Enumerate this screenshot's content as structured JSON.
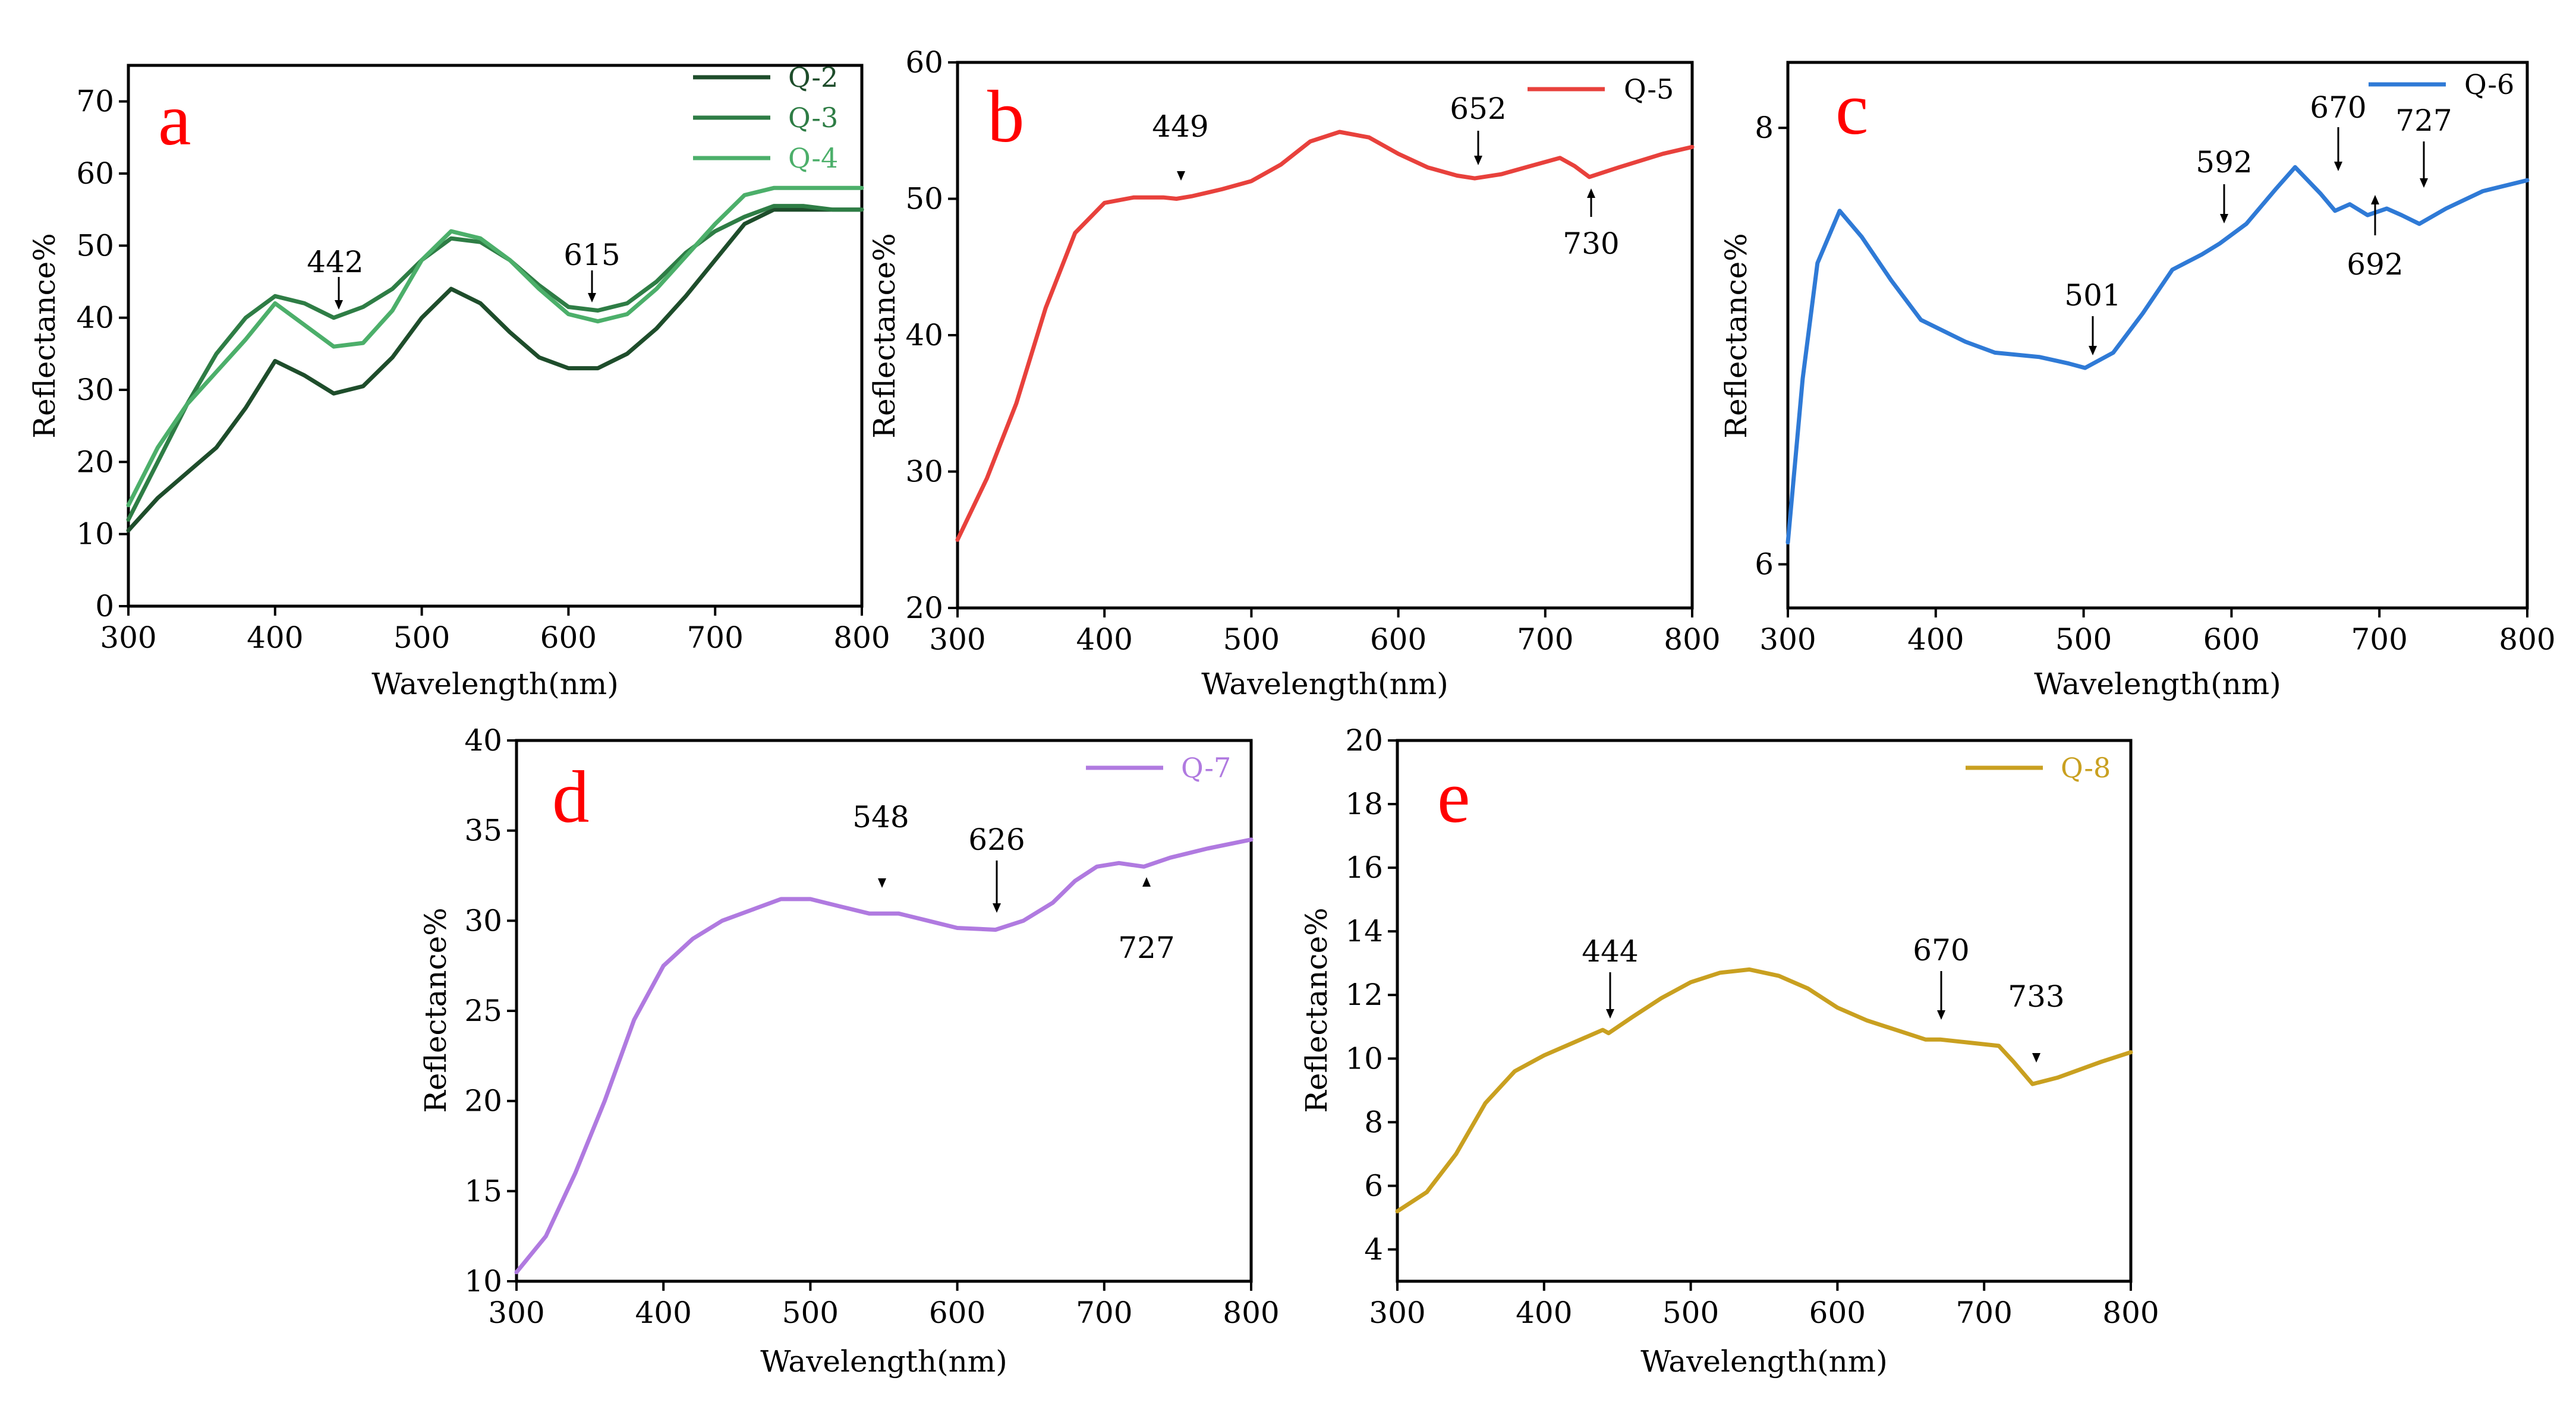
{
  "chart_data": [
    {
      "type": "line",
      "panel_label": "a",
      "xlabel": "Wavelength(nm)",
      "ylabel": "Reflectance%",
      "xlim": [
        300,
        800
      ],
      "ylim": [
        0,
        75
      ],
      "xticks": [
        300,
        400,
        500,
        600,
        700,
        800
      ],
      "yticks": [
        0,
        10,
        20,
        30,
        40,
        50,
        60,
        70
      ],
      "legend_position": "top-right",
      "series": [
        {
          "name": "Q-2",
          "color": "#1e4d2b",
          "points": [
            [
              300,
              10.5
            ],
            [
              320,
              15
            ],
            [
              340,
              18.5
            ],
            [
              360,
              22
            ],
            [
              380,
              27.5
            ],
            [
              400,
              34
            ],
            [
              420,
              32
            ],
            [
              440,
              29.5
            ],
            [
              460,
              30.5
            ],
            [
              480,
              34.5
            ],
            [
              500,
              40
            ],
            [
              520,
              44
            ],
            [
              540,
              42
            ],
            [
              560,
              38
            ],
            [
              580,
              34.5
            ],
            [
              600,
              33
            ],
            [
              620,
              33
            ],
            [
              640,
              35
            ],
            [
              660,
              38.5
            ],
            [
              680,
              43
            ],
            [
              700,
              48
            ],
            [
              720,
              53
            ],
            [
              740,
              55
            ],
            [
              760,
              55
            ],
            [
              780,
              55
            ],
            [
              800,
              55
            ]
          ]
        },
        {
          "name": "Q-3",
          "color": "#2e7d45",
          "points": [
            [
              300,
              12
            ],
            [
              320,
              20
            ],
            [
              340,
              28
            ],
            [
              360,
              35
            ],
            [
              380,
              40
            ],
            [
              400,
              43
            ],
            [
              420,
              42
            ],
            [
              440,
              40
            ],
            [
              460,
              41.5
            ],
            [
              480,
              44
            ],
            [
              500,
              48
            ],
            [
              520,
              51
            ],
            [
              540,
              50.5
            ],
            [
              560,
              48
            ],
            [
              580,
              44.5
            ],
            [
              600,
              41.5
            ],
            [
              620,
              41
            ],
            [
              640,
              42
            ],
            [
              660,
              45
            ],
            [
              680,
              49
            ],
            [
              700,
              52
            ],
            [
              720,
              54
            ],
            [
              740,
              55.5
            ],
            [
              760,
              55.5
            ],
            [
              780,
              55
            ],
            [
              800,
              55
            ]
          ]
        },
        {
          "name": "Q-4",
          "color": "#4caf6a",
          "points": [
            [
              300,
              14
            ],
            [
              320,
              22
            ],
            [
              340,
              28
            ],
            [
              360,
              32.5
            ],
            [
              380,
              37
            ],
            [
              400,
              42
            ],
            [
              420,
              39
            ],
            [
              440,
              36
            ],
            [
              460,
              36.5
            ],
            [
              480,
              41
            ],
            [
              500,
              48
            ],
            [
              520,
              52
            ],
            [
              540,
              51
            ],
            [
              560,
              48
            ],
            [
              580,
              44
            ],
            [
              600,
              40.5
            ],
            [
              620,
              39.5
            ],
            [
              640,
              40.5
            ],
            [
              660,
              44
            ],
            [
              680,
              48.5
            ],
            [
              700,
              53
            ],
            [
              720,
              57
            ],
            [
              740,
              58
            ],
            [
              760,
              58
            ],
            [
              780,
              58
            ],
            [
              800,
              58
            ]
          ]
        }
      ],
      "annotations": [
        "442",
        "615"
      ]
    },
    {
      "type": "line",
      "panel_label": "b",
      "xlabel": "Wavelength(nm)",
      "ylabel": "Reflectance%",
      "xlim": [
        300,
        800
      ],
      "ylim": [
        20,
        60
      ],
      "xticks": [
        300,
        400,
        500,
        600,
        700,
        800
      ],
      "yticks": [
        20,
        30,
        40,
        50,
        60
      ],
      "legend_position": "top-right",
      "series": [
        {
          "name": "Q-5",
          "color": "#e8413c",
          "points": [
            [
              300,
              25
            ],
            [
              320,
              29.5
            ],
            [
              340,
              35
            ],
            [
              360,
              42
            ],
            [
              380,
              47.5
            ],
            [
              400,
              49.7
            ],
            [
              420,
              50.1
            ],
            [
              440,
              50.1
            ],
            [
              449,
              50.0
            ],
            [
              460,
              50.2
            ],
            [
              480,
              50.7
            ],
            [
              500,
              51.3
            ],
            [
              520,
              52.5
            ],
            [
              540,
              54.2
            ],
            [
              560,
              54.9
            ],
            [
              580,
              54.5
            ],
            [
              600,
              53.3
            ],
            [
              620,
              52.3
            ],
            [
              640,
              51.7
            ],
            [
              652,
              51.5
            ],
            [
              670,
              51.8
            ],
            [
              690,
              52.4
            ],
            [
              710,
              53
            ],
            [
              720,
              52.4
            ],
            [
              730,
              51.6
            ],
            [
              750,
              52.3
            ],
            [
              780,
              53.3
            ],
            [
              800,
              53.8
            ]
          ]
        }
      ],
      "annotations": [
        "449",
        "652",
        "730"
      ]
    },
    {
      "type": "line",
      "panel_label": "c",
      "xlabel": "Wavelength(nm)",
      "ylabel": "Reflectance%",
      "xlim": [
        300,
        800
      ],
      "ylim": [
        5.8,
        8.3
      ],
      "xticks": [
        300,
        400,
        500,
        600,
        700,
        800
      ],
      "yticks": [
        6,
        8
      ],
      "legend_position": "top-right",
      "series": [
        {
          "name": "Q-6",
          "color": "#2f7ad6",
          "points": [
            [
              300,
              6.1
            ],
            [
              310,
              6.85
            ],
            [
              320,
              7.38
            ],
            [
              335,
              7.62
            ],
            [
              350,
              7.5
            ],
            [
              370,
              7.3
            ],
            [
              390,
              7.12
            ],
            [
              420,
              7.02
            ],
            [
              440,
              6.97
            ],
            [
              470,
              6.95
            ],
            [
              490,
              6.92
            ],
            [
              501,
              6.9
            ],
            [
              520,
              6.97
            ],
            [
              540,
              7.15
            ],
            [
              560,
              7.35
            ],
            [
              580,
              7.42
            ],
            [
              592,
              7.47
            ],
            [
              610,
              7.56
            ],
            [
              630,
              7.72
            ],
            [
              643,
              7.82
            ],
            [
              660,
              7.7
            ],
            [
              670,
              7.62
            ],
            [
              680,
              7.65
            ],
            [
              692,
              7.6
            ],
            [
              705,
              7.63
            ],
            [
              715,
              7.6
            ],
            [
              727,
              7.56
            ],
            [
              745,
              7.63
            ],
            [
              770,
              7.71
            ],
            [
              800,
              7.76
            ]
          ]
        }
      ],
      "annotations": [
        "592",
        "670",
        "727",
        "692",
        "501"
      ]
    },
    {
      "type": "line",
      "panel_label": "d",
      "xlabel": "Wavelength(nm)",
      "ylabel": "Reflectance%",
      "xlim": [
        300,
        800
      ],
      "ylim": [
        10,
        40
      ],
      "xticks": [
        300,
        400,
        500,
        600,
        700,
        800
      ],
      "yticks": [
        10,
        15,
        20,
        25,
        30,
        35,
        40
      ],
      "legend_position": "top-right",
      "series": [
        {
          "name": "Q-7",
          "color": "#b07ae0",
          "points": [
            [
              300,
              10.5
            ],
            [
              320,
              12.5
            ],
            [
              340,
              16
            ],
            [
              360,
              20
            ],
            [
              380,
              24.5
            ],
            [
              400,
              27.5
            ],
            [
              420,
              29
            ],
            [
              440,
              30
            ],
            [
              460,
              30.6
            ],
            [
              480,
              31.2
            ],
            [
              500,
              31.2
            ],
            [
              520,
              30.8
            ],
            [
              540,
              30.4
            ],
            [
              548,
              30.4
            ],
            [
              560,
              30.4
            ],
            [
              580,
              30
            ],
            [
              600,
              29.6
            ],
            [
              626,
              29.5
            ],
            [
              645,
              30
            ],
            [
              665,
              31
            ],
            [
              680,
              32.2
            ],
            [
              695,
              33
            ],
            [
              710,
              33.2
            ],
            [
              727,
              33
            ],
            [
              745,
              33.5
            ],
            [
              770,
              34
            ],
            [
              800,
              34.5
            ]
          ]
        }
      ],
      "annotations": [
        "548",
        "626",
        "727"
      ]
    },
    {
      "type": "line",
      "panel_label": "e",
      "xlabel": "Wavelength(nm)",
      "ylabel": "Reflectance%",
      "xlim": [
        300,
        800
      ],
      "ylim": [
        3,
        20
      ],
      "xticks": [
        300,
        400,
        500,
        600,
        700,
        800
      ],
      "yticks": [
        4,
        6,
        8,
        10,
        12,
        14,
        16,
        18,
        20
      ],
      "legend_position": "top-right",
      "series": [
        {
          "name": "Q-8",
          "color": "#c9a020",
          "points": [
            [
              300,
              5.2
            ],
            [
              320,
              5.8
            ],
            [
              340,
              7
            ],
            [
              360,
              8.6
            ],
            [
              380,
              9.6
            ],
            [
              400,
              10.1
            ],
            [
              420,
              10.5
            ],
            [
              440,
              10.9
            ],
            [
              444,
              10.8
            ],
            [
              460,
              11.3
            ],
            [
              480,
              11.9
            ],
            [
              500,
              12.4
            ],
            [
              520,
              12.7
            ],
            [
              540,
              12.8
            ],
            [
              560,
              12.6
            ],
            [
              580,
              12.2
            ],
            [
              600,
              11.6
            ],
            [
              620,
              11.2
            ],
            [
              640,
              10.9
            ],
            [
              660,
              10.6
            ],
            [
              670,
              10.6
            ],
            [
              690,
              10.5
            ],
            [
              710,
              10.4
            ],
            [
              720,
              9.9
            ],
            [
              733,
              9.2
            ],
            [
              750,
              9.4
            ],
            [
              780,
              9.9
            ],
            [
              800,
              10.2
            ]
          ]
        }
      ],
      "annotations": [
        "444",
        "670",
        "733"
      ]
    }
  ]
}
